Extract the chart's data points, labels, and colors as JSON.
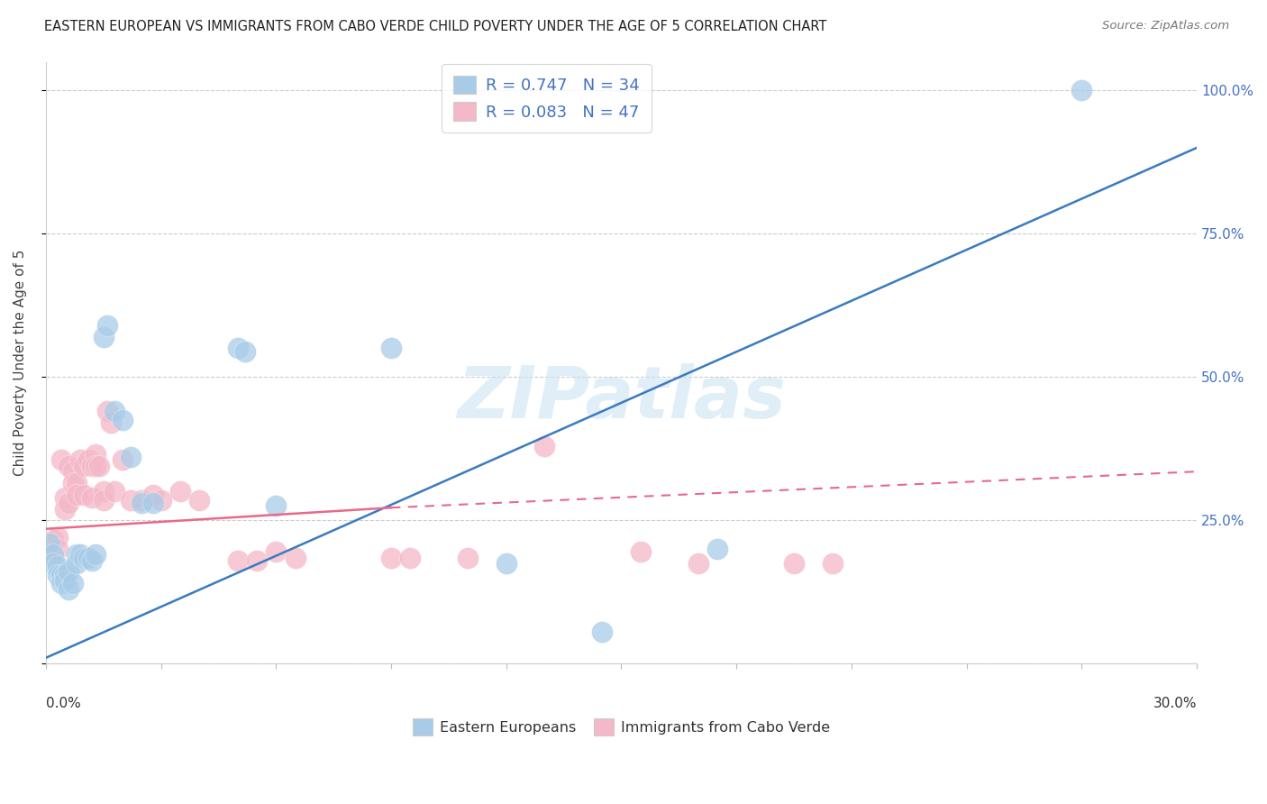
{
  "title": "EASTERN EUROPEAN VS IMMIGRANTS FROM CABO VERDE CHILD POVERTY UNDER THE AGE OF 5 CORRELATION CHART",
  "source": "Source: ZipAtlas.com",
  "ylabel": "Child Poverty Under the Age of 5",
  "yticks": [
    0.0,
    0.25,
    0.5,
    0.75,
    1.0
  ],
  "ytick_labels": [
    "",
    "25.0%",
    "50.0%",
    "75.0%",
    "100.0%"
  ],
  "xlim": [
    0.0,
    0.3
  ],
  "ylim": [
    0.0,
    1.05
  ],
  "watermark": "ZIPatlas",
  "legend1_label": "R = 0.747   N = 34",
  "legend2_label": "R = 0.083   N = 47",
  "legend_bottom1": "Eastern Europeans",
  "legend_bottom2": "Immigrants from Cabo Verde",
  "blue_color": "#a8cce8",
  "pink_color": "#f4b8c8",
  "blue_line_color": "#3a7bbf",
  "pink_line_color": "#e8698a",
  "blue_line_x0": 0.0,
  "blue_line_y0": 0.01,
  "blue_line_x1": 0.3,
  "blue_line_y1": 0.9,
  "pink_line_solid_x0": 0.0,
  "pink_line_solid_y0": 0.235,
  "pink_line_solid_x1": 0.09,
  "pink_line_solid_y1": 0.272,
  "pink_line_dash_x0": 0.09,
  "pink_line_dash_y0": 0.272,
  "pink_line_dash_x1": 0.3,
  "pink_line_dash_y1": 0.335,
  "blue_scatter_x": [
    0.001,
    0.002,
    0.002,
    0.003,
    0.003,
    0.004,
    0.004,
    0.005,
    0.005,
    0.006,
    0.006,
    0.007,
    0.008,
    0.008,
    0.009,
    0.01,
    0.011,
    0.012,
    0.013,
    0.015,
    0.016,
    0.018,
    0.02,
    0.022,
    0.025,
    0.028,
    0.05,
    0.052,
    0.06,
    0.09,
    0.12,
    0.145,
    0.175,
    0.27
  ],
  "blue_scatter_y": [
    0.21,
    0.19,
    0.175,
    0.17,
    0.155,
    0.155,
    0.14,
    0.155,
    0.145,
    0.13,
    0.16,
    0.14,
    0.19,
    0.175,
    0.19,
    0.185,
    0.185,
    0.18,
    0.19,
    0.57,
    0.59,
    0.44,
    0.425,
    0.36,
    0.28,
    0.28,
    0.55,
    0.545,
    0.275,
    0.55,
    0.175,
    0.055,
    0.2,
    1.0
  ],
  "pink_scatter_x": [
    0.001,
    0.002,
    0.002,
    0.003,
    0.003,
    0.004,
    0.005,
    0.005,
    0.006,
    0.006,
    0.007,
    0.007,
    0.008,
    0.008,
    0.009,
    0.01,
    0.01,
    0.011,
    0.012,
    0.012,
    0.013,
    0.013,
    0.014,
    0.015,
    0.015,
    0.016,
    0.017,
    0.018,
    0.02,
    0.022,
    0.025,
    0.028,
    0.03,
    0.035,
    0.04,
    0.05,
    0.055,
    0.06,
    0.065,
    0.09,
    0.095,
    0.11,
    0.13,
    0.155,
    0.17,
    0.195,
    0.205
  ],
  "pink_scatter_y": [
    0.2,
    0.215,
    0.185,
    0.22,
    0.2,
    0.355,
    0.29,
    0.27,
    0.345,
    0.28,
    0.335,
    0.315,
    0.315,
    0.295,
    0.355,
    0.345,
    0.295,
    0.355,
    0.345,
    0.29,
    0.365,
    0.345,
    0.345,
    0.3,
    0.285,
    0.44,
    0.42,
    0.3,
    0.355,
    0.285,
    0.285,
    0.295,
    0.285,
    0.3,
    0.285,
    0.18,
    0.18,
    0.195,
    0.185,
    0.185,
    0.185,
    0.185,
    0.38,
    0.195,
    0.175,
    0.175,
    0.175
  ]
}
